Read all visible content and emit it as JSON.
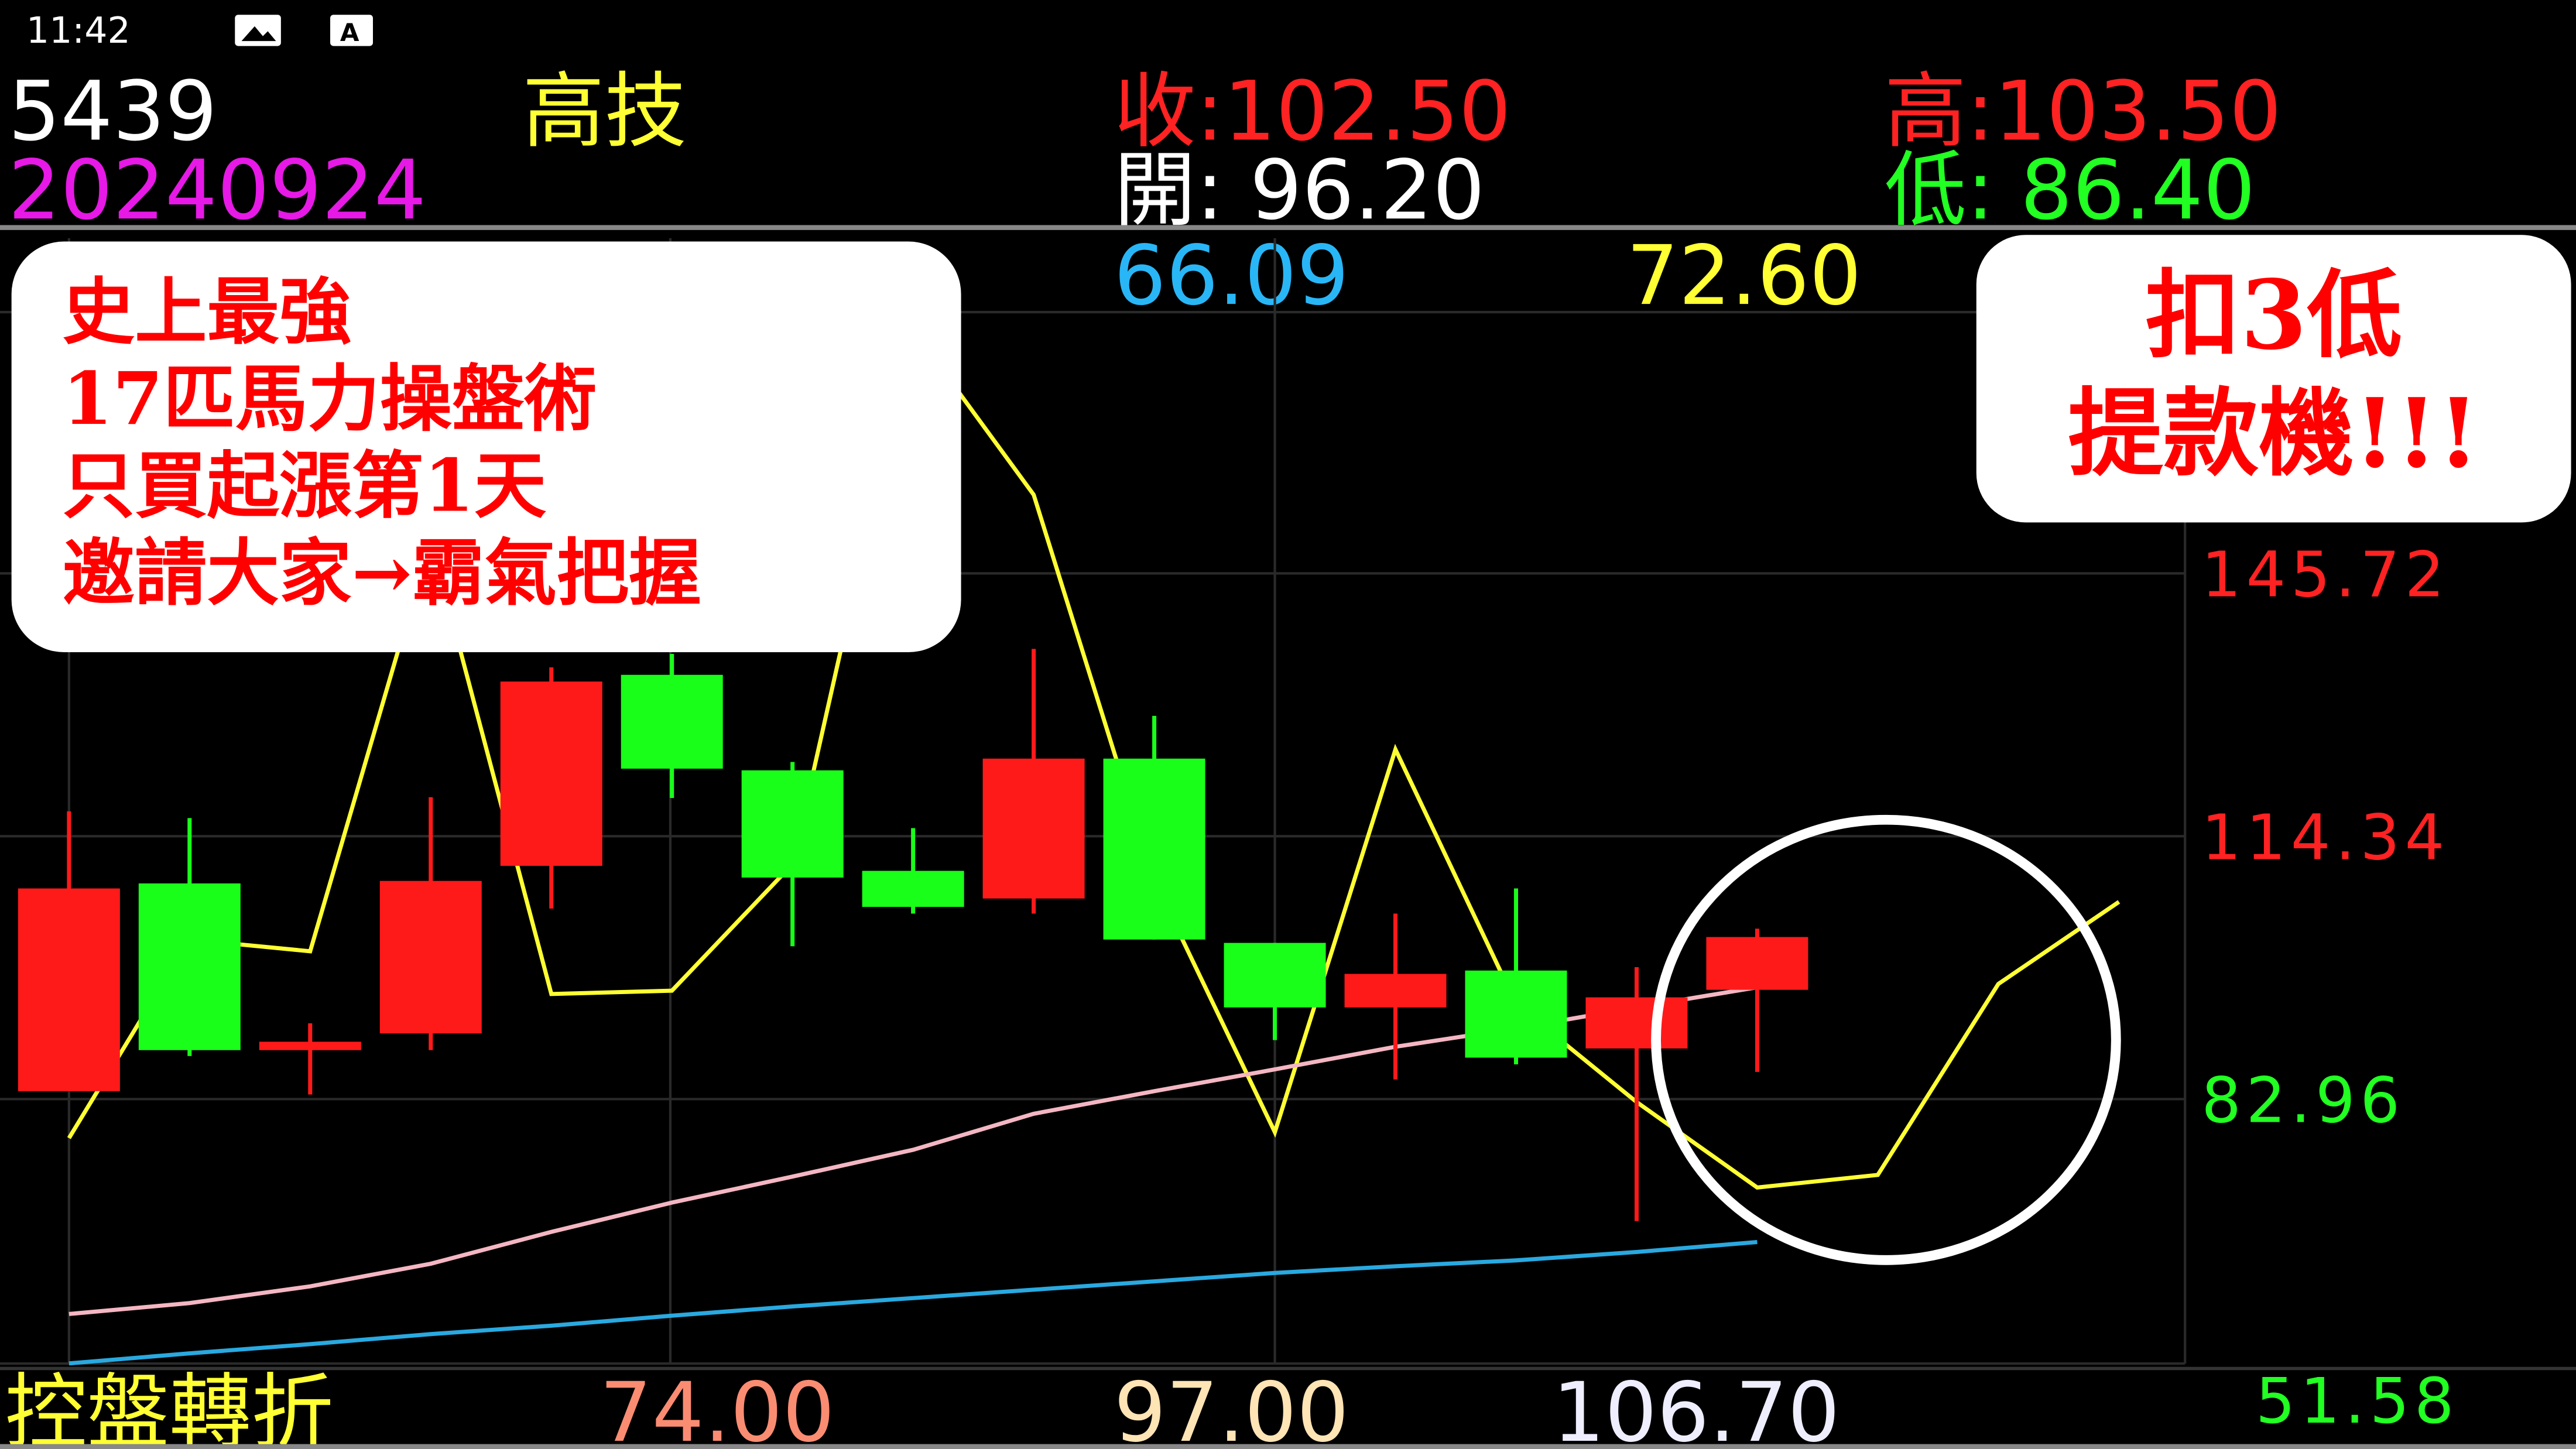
{
  "status_bar": {
    "time": "11:42",
    "icons": [
      "image-icon",
      "a-notification-icon"
    ]
  },
  "header": {
    "code": "5439",
    "name": "高技",
    "date": "20240924",
    "close_label": "收:102.50",
    "high_label": "高:103.50",
    "open_label": "開: 96.20",
    "low_label": "低: 86.40"
  },
  "indicator_row": {
    "blue_value": "66.09",
    "yellow_value": "72.60"
  },
  "bottom_row": {
    "label": "控盤轉折",
    "values": [
      "74.00",
      "97.00",
      "106.70"
    ],
    "bottom_axis_value": "51.58"
  },
  "colors": {
    "up": "#ff1a1a",
    "down": "#1aff1a",
    "ma_pink": "#f4b6c2",
    "ma_blue": "#29a9e0",
    "turn_line": "#ffff33"
  },
  "annotations": {
    "left_box": [
      "史上最強",
      "17匹馬力操盤術",
      "只買起漲第1天",
      "邀請大家→霸氣把握"
    ],
    "right_box": [
      "扣3低",
      "提款機!!!"
    ]
  },
  "chart_data": {
    "type": "candlestick",
    "y_ticks": [
      "145.72",
      "114.34",
      "82.96"
    ],
    "ylim": [
      51.58,
      177.1
    ],
    "grid": true,
    "candles": [
      {
        "o": 84.1,
        "h": 117.5,
        "l": 84.1,
        "c": 108.3
      },
      {
        "o": 108.9,
        "h": 116.7,
        "l": 88.3,
        "c": 89.0
      },
      {
        "o": 89.0,
        "h": 92.2,
        "l": 83.7,
        "c": 90.0
      },
      {
        "o": 91.0,
        "h": 119.2,
        "l": 89.0,
        "c": 109.2
      },
      {
        "o": 111.0,
        "h": 134.7,
        "l": 105.9,
        "c": 133.0
      },
      {
        "o": 133.8,
        "h": 136.3,
        "l": 119.1,
        "c": 122.6
      },
      {
        "o": 122.4,
        "h": 123.4,
        "l": 101.4,
        "c": 109.6
      },
      {
        "o": 110.4,
        "h": 115.5,
        "l": 105.3,
        "c": 106.1
      },
      {
        "o": 107.1,
        "h": 136.9,
        "l": 105.3,
        "c": 123.8
      },
      {
        "o": 123.8,
        "h": 128.9,
        "l": 102.2,
        "c": 102.2
      },
      {
        "o": 101.8,
        "h": 101.8,
        "l": 90.2,
        "c": 94.1
      },
      {
        "o": 94.1,
        "h": 105.3,
        "l": 85.5,
        "c": 98.1
      },
      {
        "o": 98.5,
        "h": 108.3,
        "l": 87.3,
        "c": 88.1
      },
      {
        "o": 89.2,
        "h": 98.9,
        "l": 68.6,
        "c": 95.3
      },
      {
        "o": 96.2,
        "h": 103.5,
        "l": 86.4,
        "c": 102.5
      }
    ],
    "lines": [
      {
        "color": "#ffff33",
        "values": [
          78.5,
          102.2,
          100.8,
          150.0,
          95.7,
          96.1,
          111.2,
          175.0,
          155.3,
          109.2,
          79.2,
          124.9,
          94.5,
          82.8,
          72.6,
          74.1,
          96.9,
          106.7
        ]
      },
      {
        "color": "#f4b6c2",
        "values": [
          57.5,
          58.8,
          60.8,
          63.5,
          67.3,
          70.8,
          73.9,
          77.1,
          81.4,
          84.1,
          86.7,
          89.4,
          91.6,
          94.1,
          96.5
        ]
      },
      {
        "color": "#29a9e0",
        "values": [
          51.6,
          52.8,
          53.9,
          55.1,
          56.1,
          57.3,
          58.4,
          59.4,
          60.4,
          61.4,
          62.4,
          63.2,
          63.9,
          64.9,
          66.09
        ]
      }
    ]
  }
}
